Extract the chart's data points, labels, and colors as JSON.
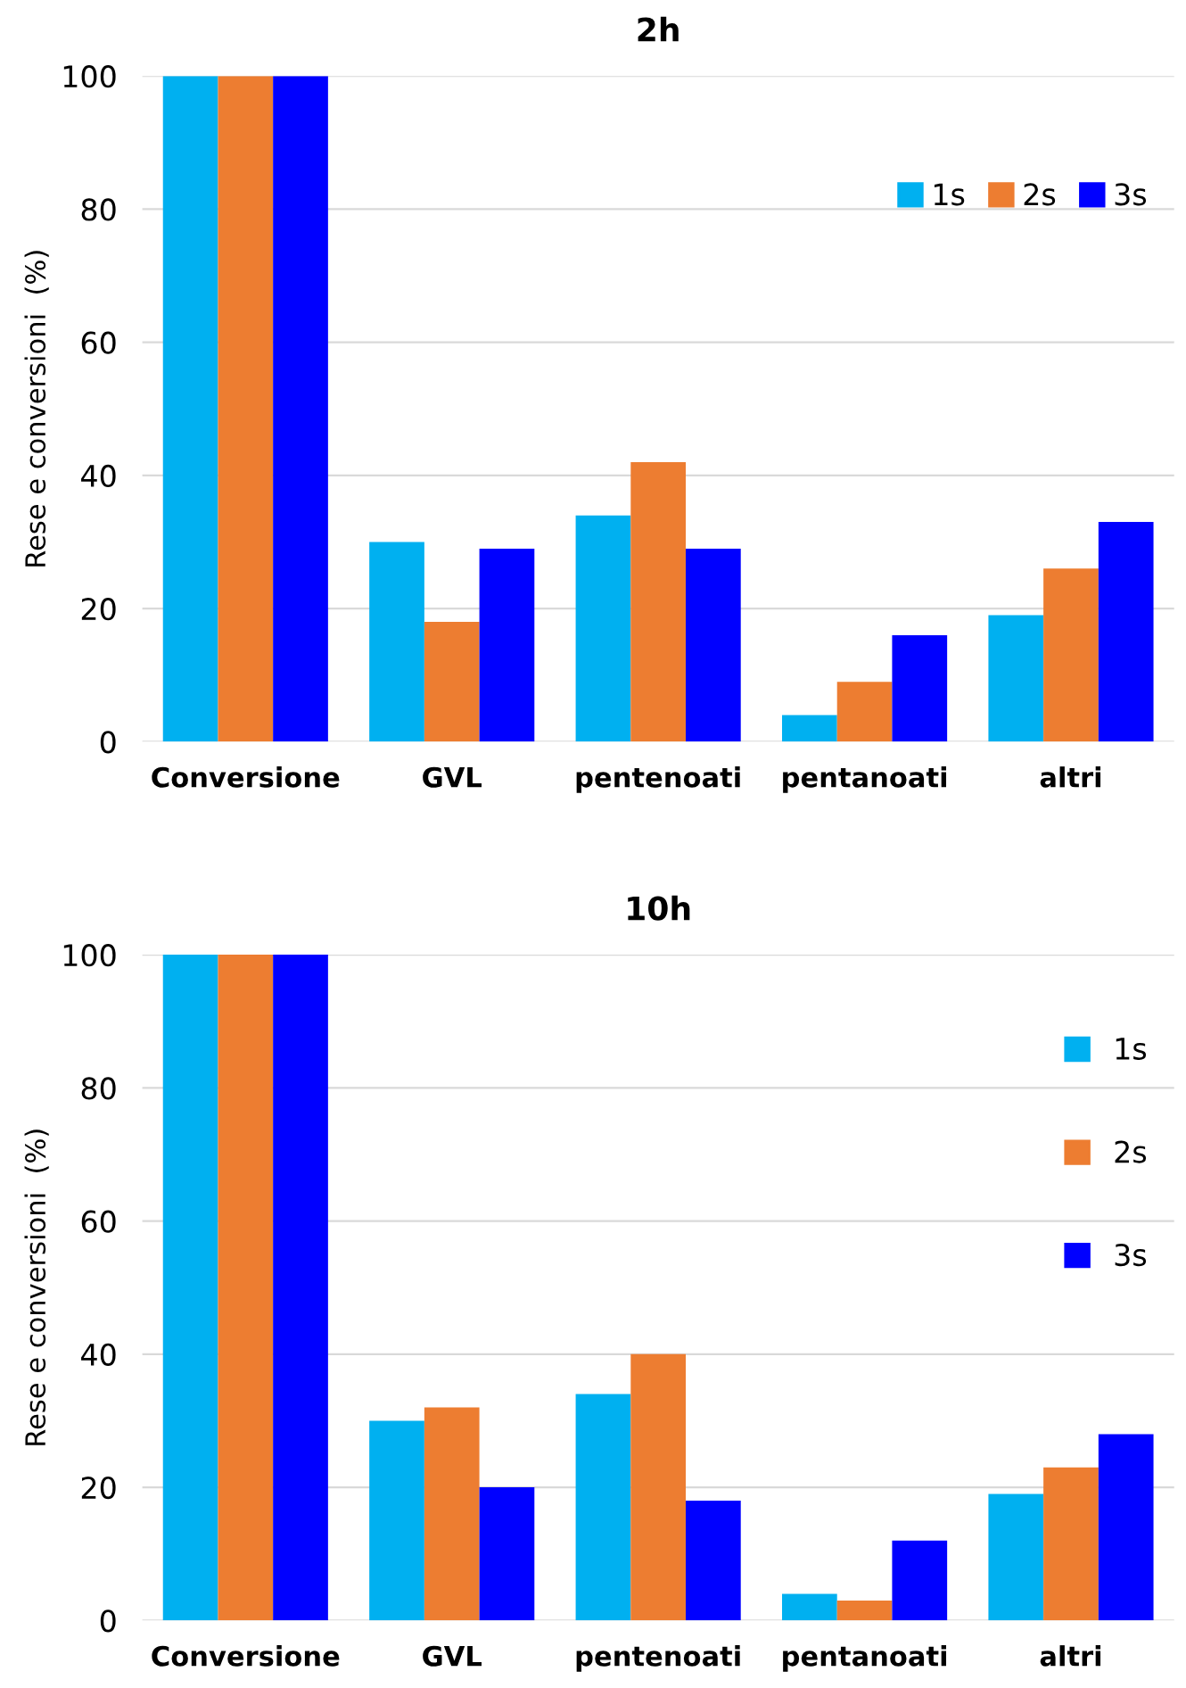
{
  "chart_data": [
    {
      "type": "bar",
      "title": "2h",
      "ylabel": "Rese e conversioni  (%)",
      "categories": [
        "Conversione",
        "GVL",
        "pentenoati",
        "pentanoati",
        "altri"
      ],
      "ylim": [
        0,
        100
      ],
      "yticks": [
        0,
        20,
        40,
        60,
        80,
        100
      ],
      "grid": "y",
      "legend": "top right",
      "series": [
        {
          "name": "1s",
          "color": "#00b0f0",
          "values": [
            100,
            30,
            34,
            4,
            19
          ]
        },
        {
          "name": "2s",
          "color": "#ed7d31",
          "values": [
            100,
            18,
            42,
            9,
            26
          ]
        },
        {
          "name": "3s",
          "color": "#0000ff",
          "values": [
            100,
            29,
            29,
            16,
            33
          ]
        }
      ]
    },
    {
      "type": "bar",
      "title": "10h",
      "ylabel": "Rese e conversioni  (%)",
      "categories": [
        "Conversione",
        "GVL",
        "pentenoati",
        "pentanoati",
        "altri"
      ],
      "ylim": [
        0,
        100
      ],
      "yticks": [
        0,
        20,
        40,
        60,
        80,
        100
      ],
      "grid": "y",
      "legend": "right",
      "series": [
        {
          "name": "1s",
          "color": "#00b0f0",
          "values": [
            100,
            30,
            34,
            4,
            19
          ]
        },
        {
          "name": "2s",
          "color": "#ed7d31",
          "values": [
            100,
            32,
            40,
            3,
            23
          ]
        },
        {
          "name": "3s",
          "color": "#0000ff",
          "values": [
            100,
            20,
            18,
            12,
            28
          ]
        }
      ]
    }
  ]
}
